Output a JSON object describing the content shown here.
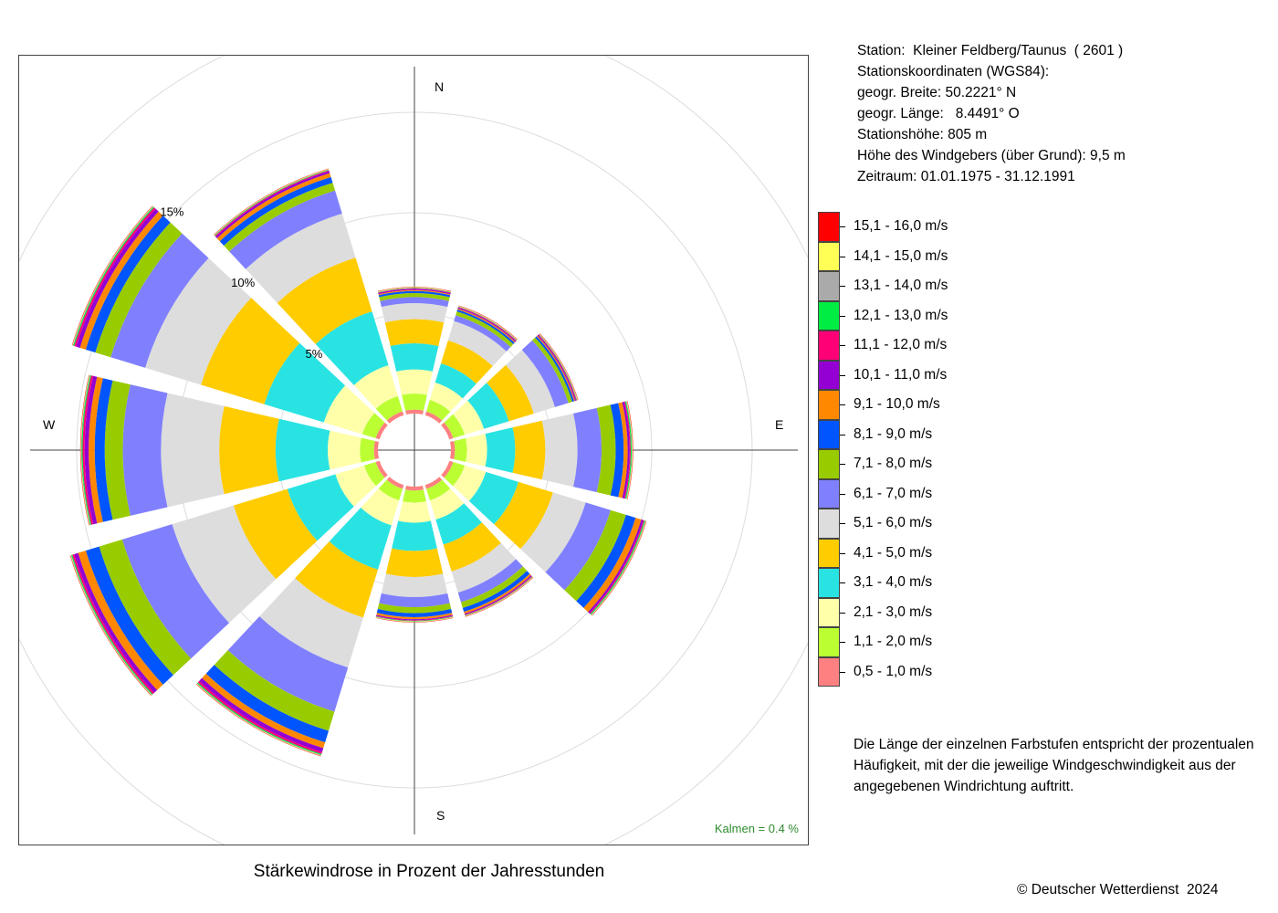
{
  "station": {
    "lines": [
      "Station:  Kleiner Feldberg/Taunus  ( 2601 )",
      "Stationskoordinaten (WGS84):",
      "geogr. Breite: 50.2221° N",
      "geogr. Länge:   8.4491° O",
      "Stationshöhe: 805 m",
      "Höhe des Windgebers (über Grund): 9,5 m",
      "Zeitraum: 01.01.1975 - 31.12.1991"
    ]
  },
  "compass": {
    "north": "N",
    "east": "E",
    "south": "S",
    "west": "W"
  },
  "calm_note": "Kalmen  =  0.4 %",
  "explanation": "Die Länge der einzelnen Farbstufen entspricht der prozentualen Häufigkeit, mit der die jeweilige Windgeschwindigkeit aus der angegebenen Windrichtung auftritt.",
  "copyright": "© Deutscher Wetterdienst  2024",
  "chart_data": {
    "type": "wind-rose",
    "title": "Stärkewindrose in Prozent der Jahresstunden",
    "ring_labels": [
      "5%",
      "10%",
      "15%"
    ],
    "rings": [
      5,
      10,
      15,
      20
    ],
    "calm_percent": 0.4,
    "directions": [
      0,
      30,
      60,
      90,
      120,
      150,
      180,
      210,
      240,
      270,
      300,
      330
    ],
    "classes": [
      {
        "label": "15,1 - 16,0 m/s",
        "color": "#ff0000"
      },
      {
        "label": "14,1 - 15,0 m/s",
        "color": "#ffff55"
      },
      {
        "label": "13,1 - 14,0 m/s",
        "color": "#aaaaaa"
      },
      {
        "label": "12,1 - 13,0 m/s",
        "color": "#00ee44"
      },
      {
        "label": "11,1 - 12,0 m/s",
        "color": "#ff0077"
      },
      {
        "label": "10,1 - 11,0 m/s",
        "color": "#9400d3"
      },
      {
        "label": "9,1 - 10,0 m/s",
        "color": "#ff8800"
      },
      {
        "label": "8,1 - 9,0 m/s",
        "color": "#0055ff"
      },
      {
        "label": "7,1 - 8,0 m/s",
        "color": "#99cc00"
      },
      {
        "label": "6,1 - 7,0 m/s",
        "color": "#8080ff"
      },
      {
        "label": "5,1 - 6,0 m/s",
        "color": "#dddddd"
      },
      {
        "label": "4,1 - 5,0 m/s",
        "color": "#ffcc00"
      },
      {
        "label": "3,1 - 4,0 m/s",
        "color": "#29e3e3"
      },
      {
        "label": "2,1 - 3,0 m/s",
        "color": "#ffffaa"
      },
      {
        "label": "1,1 - 2,0 m/s",
        "color": "#bbff33"
      },
      {
        "label": "0,5 - 1,0 m/s",
        "color": "#ff8080"
      }
    ],
    "stack_order_inner_to_outer": [
      "0,5 - 1,0 m/s",
      "1,1 - 2,0 m/s",
      "2,1 - 3,0 m/s",
      "3,1 - 4,0 m/s",
      "4,1 - 5,0 m/s",
      "5,1 - 6,0 m/s",
      "6,1 - 7,0 m/s",
      "7,1 - 8,0 m/s",
      "8,1 - 9,0 m/s",
      "9,1 - 10,0 m/s",
      "10,1 - 11,0 m/s",
      "11,1 - 12,0 m/s",
      "12,1 - 13,0 m/s",
      "13,1 - 14,0 m/s",
      "14,1 - 15,0 m/s",
      "15,1 - 16,0 m/s"
    ],
    "series": [
      {
        "direction": 0,
        "values": [
          0.2,
          0.8,
          1.2,
          1.3,
          1.2,
          0.8,
          0.3,
          0.2,
          0.1,
          0.05,
          0.05,
          0.03,
          0.02,
          0.02,
          0.02,
          0.02
        ]
      },
      {
        "direction": 30,
        "values": [
          0.2,
          0.6,
          0.9,
          1.0,
          1.2,
          1.0,
          0.3,
          0.2,
          0.1,
          0.05,
          0.05,
          0.03,
          0.02,
          0.02,
          0.02,
          0.02
        ]
      },
      {
        "direction": 60,
        "values": [
          0.2,
          0.6,
          1.0,
          1.3,
          1.3,
          1.1,
          0.7,
          0.2,
          0.1,
          0.05,
          0.05,
          0.03,
          0.02,
          0.02,
          0.02,
          0.02
        ]
      },
      {
        "direction": 90,
        "values": [
          0.2,
          0.6,
          1.0,
          1.4,
          1.5,
          1.6,
          1.2,
          0.7,
          0.4,
          0.2,
          0.1,
          0.05,
          0.05,
          0.03,
          0.02,
          0.02
        ]
      },
      {
        "direction": 120,
        "values": [
          0.2,
          0.6,
          1.1,
          1.7,
          1.8,
          1.7,
          1.3,
          0.8,
          0.5,
          0.3,
          0.1,
          0.05,
          0.05,
          0.03,
          0.02,
          0.02
        ]
      },
      {
        "direction": 150,
        "values": [
          0.2,
          0.6,
          1.0,
          1.3,
          1.4,
          1.1,
          0.5,
          0.3,
          0.2,
          0.1,
          0.05,
          0.03,
          0.02,
          0.02,
          0.02,
          0.02
        ]
      },
      {
        "direction": 180,
        "values": [
          0.2,
          0.6,
          1.0,
          1.4,
          1.3,
          1.0,
          0.5,
          0.3,
          0.2,
          0.1,
          0.05,
          0.03,
          0.02,
          0.02,
          0.02,
          0.02
        ]
      },
      {
        "direction": 210,
        "values": [
          0.2,
          0.6,
          1.3,
          2.3,
          2.5,
          2.6,
          2.3,
          1.0,
          0.6,
          0.3,
          0.2,
          0.1,
          0.05,
          0.03,
          0.02,
          0.02
        ]
      },
      {
        "direction": 240,
        "values": [
          0.2,
          0.6,
          1.5,
          2.5,
          2.8,
          3.2,
          2.6,
          1.2,
          0.7,
          0.4,
          0.2,
          0.1,
          0.05,
          0.03,
          0.02,
          0.02
        ]
      },
      {
        "direction": 270,
        "values": [
          0.2,
          0.7,
          1.6,
          2.6,
          2.8,
          2.9,
          1.9,
          0.9,
          0.5,
          0.3,
          0.2,
          0.1,
          0.05,
          0.03,
          0.02,
          0.02
        ]
      },
      {
        "direction": 300,
        "values": [
          0.2,
          0.7,
          2.0,
          3.1,
          3.3,
          2.9,
          1.8,
          0.8,
          0.5,
          0.3,
          0.2,
          0.1,
          0.05,
          0.03,
          0.02,
          0.02
        ]
      },
      {
        "direction": 330,
        "values": [
          0.2,
          0.8,
          1.6,
          2.8,
          2.8,
          2.3,
          1.2,
          0.4,
          0.3,
          0.2,
          0.1,
          0.05,
          0.03,
          0.02,
          0.02,
          0.02
        ]
      }
    ]
  }
}
